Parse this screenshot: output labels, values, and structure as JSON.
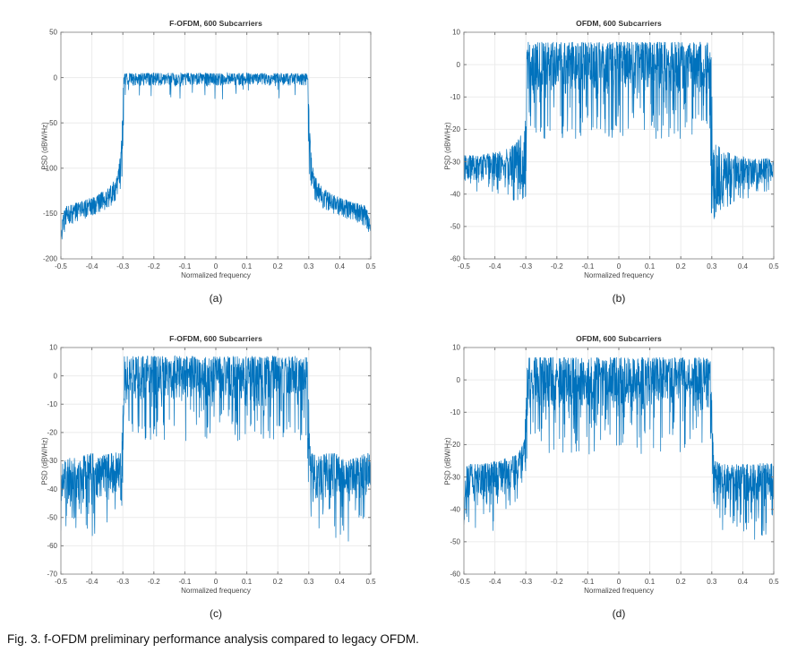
{
  "figure": {
    "caption": "Fig. 3. f-OFDM preliminary performance analysis compared to legacy OFDM.",
    "style": {
      "line_color": "#0072BD",
      "grid_color": "#ebebeb",
      "axis_color": "#979797",
      "tick_color": "#7a7a7a",
      "tick_label_color": "#464646",
      "title_color": "#303030",
      "background": "#ffffff"
    }
  },
  "chart_data": [
    {
      "id": "a",
      "sublabel": "(a)",
      "type": "line",
      "title": "F-OFDM, 600 Subcarriers",
      "xlabel": "Normalized frequency",
      "ylabel": "PSD (dBW/Hz)",
      "xlim": [
        -0.5,
        0.5
      ],
      "ylim": [
        -200,
        50
      ],
      "grid": true,
      "legend": "none",
      "xticks": [
        -0.5,
        -0.4,
        -0.3,
        -0.2,
        -0.1,
        0,
        0.1,
        0.2,
        0.3,
        0.4,
        0.5
      ],
      "xtick_labels": [
        "-0.5",
        "-0.4",
        "-0.3",
        "-0.2",
        "-0.1",
        "0",
        "0.1",
        "0.2",
        "0.3",
        "0.4",
        "0.5"
      ],
      "yticks": [
        50,
        0,
        -50,
        -100,
        -150,
        -200
      ],
      "ytick_labels": [
        "50",
        "0",
        "-50",
        "-100",
        "-150",
        "-200"
      ],
      "description": "Filtered-OFDM PSD: flat passband near 0 dBW/Hz over |f|<0.3, steep filter skirts at ±0.3 falling to about -100, sidelobe floor decaying from -130 to -150 toward band edges, dipping to about -190 at ±0.5.",
      "seed": 11,
      "samples": 1400,
      "envelope": [
        [
          -0.5,
          -178,
          12,
          14,
          0,
          0
        ],
        [
          -0.492,
          -160,
          12,
          14,
          0,
          0
        ],
        [
          -0.48,
          -151,
          10,
          13,
          0,
          0
        ],
        [
          -0.44,
          -146,
          9,
          12,
          0,
          0
        ],
        [
          -0.39,
          -140,
          9,
          12,
          0,
          0
        ],
        [
          -0.345,
          -132,
          10,
          13,
          0,
          0
        ],
        [
          -0.318,
          -120,
          12,
          15,
          0,
          0
        ],
        [
          -0.308,
          -104,
          18,
          22,
          0,
          0
        ],
        [
          -0.302,
          -80,
          38,
          40,
          0,
          0
        ],
        [
          -0.299,
          -30,
          25,
          50,
          0,
          0
        ],
        [
          -0.296,
          -3,
          8,
          10,
          0.02,
          12
        ],
        [
          -0.285,
          -1,
          6,
          8,
          0.03,
          16
        ],
        [
          0.285,
          -1,
          6,
          8,
          0.03,
          16
        ],
        [
          0.296,
          -3,
          8,
          10,
          0.02,
          12
        ],
        [
          0.299,
          -30,
          25,
          50,
          0,
          0
        ],
        [
          0.302,
          -80,
          38,
          40,
          0,
          0
        ],
        [
          0.308,
          -104,
          18,
          22,
          0,
          0
        ],
        [
          0.318,
          -120,
          12,
          15,
          0,
          0
        ],
        [
          0.345,
          -132,
          10,
          13,
          0,
          0
        ],
        [
          0.39,
          -140,
          9,
          12,
          0,
          0
        ],
        [
          0.44,
          -146,
          9,
          12,
          0,
          0
        ],
        [
          0.48,
          -151,
          10,
          13,
          0,
          0
        ],
        [
          0.492,
          -160,
          12,
          14,
          0,
          0
        ],
        [
          0.5,
          -178,
          12,
          14,
          0,
          0
        ]
      ]
    },
    {
      "id": "b",
      "sublabel": "(b)",
      "type": "line",
      "title": "OFDM, 600 Subcarriers",
      "xlabel": "Normalized frequency",
      "ylabel": "PSD (dBW/Hz)",
      "xlim": [
        -0.5,
        0.5
      ],
      "ylim": [
        -60,
        10
      ],
      "grid": true,
      "legend": "none",
      "xticks": [
        -0.5,
        -0.4,
        -0.3,
        -0.2,
        -0.1,
        0,
        0.1,
        0.2,
        0.3,
        0.4,
        0.5
      ],
      "xtick_labels": [
        "-0.5",
        "-0.4",
        "-0.3",
        "-0.2",
        "-0.1",
        "0",
        "0.1",
        "0.2",
        "0.3",
        "0.4",
        "0.5"
      ],
      "yticks": [
        10,
        0,
        -10,
        -20,
        -30,
        -40,
        -50,
        -60
      ],
      "ytick_labels": [
        "10",
        "0",
        "-10",
        "-20",
        "-30",
        "-40",
        "-50",
        "-60"
      ],
      "description": "Legacy OFDM PSD: noisy passband around 0..+8 dBW/Hz with deep dips over |f|<0.3, sinc sidelobe comb oscillating around -32 outside the band, spikes to about -41 near -0.3 and -57 near +0.3.",
      "seed": 23,
      "samples": 1400,
      "envelope": [
        [
          -0.5,
          -32,
          4,
          4,
          0.04,
          3
        ],
        [
          -0.45,
          -32,
          4,
          4,
          0.05,
          4
        ],
        [
          -0.4,
          -31,
          4,
          5,
          0.08,
          5
        ],
        [
          -0.36,
          -30,
          4,
          6,
          0.12,
          6
        ],
        [
          -0.33,
          -28,
          4,
          8,
          0.2,
          6
        ],
        [
          -0.312,
          -25,
          4,
          11,
          0.35,
          6
        ],
        [
          -0.303,
          -22,
          4,
          14,
          0.5,
          6
        ],
        [
          -0.299,
          -12,
          13,
          18,
          0.3,
          10
        ],
        [
          -0.294,
          0,
          7,
          9,
          0.15,
          12
        ],
        [
          -0.28,
          1,
          6,
          9,
          0.13,
          15
        ],
        [
          0.28,
          1,
          6,
          9,
          0.13,
          15
        ],
        [
          0.294,
          0,
          7,
          9,
          0.15,
          12
        ],
        [
          0.299,
          -12,
          13,
          22,
          0.35,
          18
        ],
        [
          0.303,
          -26,
          4,
          16,
          0.55,
          9
        ],
        [
          0.312,
          -28,
          4,
          13,
          0.45,
          7
        ],
        [
          0.33,
          -29,
          3,
          10,
          0.3,
          6
        ],
        [
          0.37,
          -31,
          3,
          7,
          0.18,
          5
        ],
        [
          0.43,
          -32,
          3,
          5,
          0.1,
          4
        ],
        [
          0.5,
          -32,
          3,
          4,
          0.06,
          3
        ]
      ]
    },
    {
      "id": "c",
      "sublabel": "(c)",
      "type": "line",
      "title": "F-OFDM, 600 Subcarriers",
      "xlabel": "Normalized frequency",
      "ylabel": "PSD (dBW/Hz)",
      "xlim": [
        -0.5,
        0.5
      ],
      "ylim": [
        -70,
        10
      ],
      "grid": true,
      "legend": "none",
      "xticks": [
        -0.5,
        -0.4,
        -0.3,
        -0.2,
        -0.1,
        0,
        0.1,
        0.2,
        0.3,
        0.4,
        0.5
      ],
      "xtick_labels": [
        "-0.5",
        "-0.4",
        "-0.3",
        "-0.2",
        "-0.1",
        "0",
        "0.1",
        "0.2",
        "0.3",
        "0.4",
        "0.5"
      ],
      "yticks": [
        10,
        0,
        -10,
        -20,
        -30,
        -40,
        -50,
        -60,
        -70
      ],
      "ytick_labels": [
        "10",
        "0",
        "-10",
        "-20",
        "-30",
        "-40",
        "-50",
        "-60",
        "-70"
      ],
      "description": "F-OFDM over a noisy channel: noisy passband 0..+8 dBW/Hz over |f|<0.3, noisy out-of-band floor around -35 dBW/Hz with spikes down to about -67.",
      "seed": 37,
      "samples": 1400,
      "envelope": [
        [
          -0.5,
          -37,
          8,
          8,
          0.08,
          13
        ],
        [
          -0.45,
          -37,
          8,
          9,
          0.1,
          15
        ],
        [
          -0.41,
          -34,
          7,
          9,
          0.1,
          15
        ],
        [
          -0.37,
          -35,
          7,
          9,
          0.1,
          13
        ],
        [
          -0.33,
          -34,
          7,
          8,
          0.08,
          11
        ],
        [
          -0.306,
          -33,
          6,
          8,
          0.06,
          8
        ],
        [
          -0.3,
          -22,
          13,
          14,
          0.08,
          10
        ],
        [
          -0.295,
          -1,
          8,
          9,
          0.13,
          13
        ],
        [
          -0.28,
          1,
          6,
          9,
          0.13,
          15
        ],
        [
          0.28,
          1,
          6,
          9,
          0.13,
          15
        ],
        [
          0.295,
          -1,
          8,
          9,
          0.13,
          13
        ],
        [
          0.3,
          -22,
          13,
          14,
          0.08,
          10
        ],
        [
          0.306,
          -34,
          7,
          8,
          0.06,
          8
        ],
        [
          0.33,
          -35,
          7,
          9,
          0.08,
          11
        ],
        [
          0.375,
          -34,
          7,
          9,
          0.1,
          13
        ],
        [
          0.425,
          -36,
          7,
          9,
          0.1,
          16
        ],
        [
          0.465,
          -35,
          7,
          8,
          0.09,
          13
        ],
        [
          0.5,
          -33,
          6,
          8,
          0.07,
          11
        ]
      ]
    },
    {
      "id": "d",
      "sublabel": "(d)",
      "type": "line",
      "title": "OFDM, 600 Subcarriers",
      "xlabel": "Normalized frequency",
      "ylabel": "PSD (dBW/Hz)",
      "xlim": [
        -0.5,
        0.5
      ],
      "ylim": [
        -60,
        10
      ],
      "grid": true,
      "legend": "none",
      "xticks": [
        -0.5,
        -0.4,
        -0.3,
        -0.2,
        -0.1,
        0,
        0.1,
        0.2,
        0.3,
        0.4,
        0.5
      ],
      "xtick_labels": [
        "-0.5",
        "-0.4",
        "-0.3",
        "-0.2",
        "-0.1",
        "0",
        "0.1",
        "0.2",
        "0.3",
        "0.4",
        "0.5"
      ],
      "yticks": [
        10,
        0,
        -10,
        -20,
        -30,
        -40,
        -50,
        -60
      ],
      "ytick_labels": [
        "10",
        "0",
        "-10",
        "-20",
        "-30",
        "-40",
        "-50",
        "-60"
      ],
      "description": "Legacy OFDM over a noisy channel: noisy passband 0..+8 dBW/Hz over |f|<0.3, noisy out-of-band floor around -31 dBW/Hz rising toward ±0.3, spikes down to about -52.",
      "seed": 53,
      "samples": 1400,
      "envelope": [
        [
          -0.5,
          -31,
          5,
          6,
          0.1,
          8
        ],
        [
          -0.44,
          -31,
          5,
          6,
          0.11,
          10
        ],
        [
          -0.4,
          -30,
          5,
          7,
          0.11,
          11
        ],
        [
          -0.36,
          -29,
          5,
          6,
          0.1,
          8
        ],
        [
          -0.325,
          -27,
          4,
          6,
          0.09,
          6
        ],
        [
          -0.306,
          -23,
          4,
          6,
          0.1,
          5
        ],
        [
          -0.3,
          -15,
          9,
          10,
          0.1,
          8
        ],
        [
          -0.295,
          0,
          7,
          9,
          0.13,
          13
        ],
        [
          -0.28,
          1,
          6,
          9,
          0.13,
          15
        ],
        [
          0.28,
          1,
          6,
          9,
          0.13,
          15
        ],
        [
          0.295,
          0,
          7,
          9,
          0.13,
          13
        ],
        [
          0.3,
          -15,
          9,
          10,
          0.1,
          8
        ],
        [
          0.306,
          -28,
          4,
          6,
          0.1,
          6
        ],
        [
          0.33,
          -30,
          4,
          7,
          0.12,
          9
        ],
        [
          0.38,
          -31,
          5,
          7,
          0.12,
          12
        ],
        [
          0.44,
          -31,
          5,
          7,
          0.12,
          12
        ],
        [
          0.5,
          -30,
          5,
          7,
          0.1,
          10
        ]
      ]
    }
  ]
}
